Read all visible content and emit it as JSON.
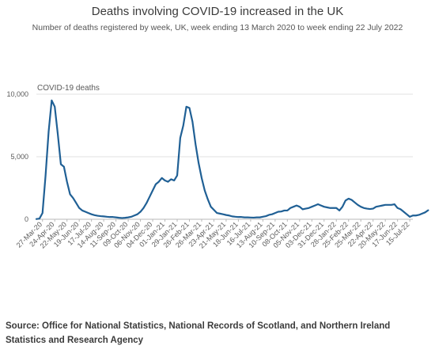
{
  "chart_data": {
    "type": "line",
    "title": "Deaths involving COVID-19 increased in the UK",
    "subtitle": "Number of deaths registered by week, UK, week ending 13 March 2020 to week ending 22 July 2022",
    "ylabel": "COVID-19 deaths",
    "xlabel": "",
    "ylim": [
      0,
      10000
    ],
    "yticks": [
      0,
      5000,
      10000
    ],
    "ytick_labels": [
      "0",
      "5,000",
      "10,000"
    ],
    "grid": "horizontal",
    "color": "#206095",
    "x_tick_labels": [
      "27-Mar-20",
      "24-Apr-20",
      "22-May-20",
      "19-Jun-20",
      "17-Jul-20",
      "14-Aug-20",
      "11-Sep-20",
      "09-Oct-20",
      "06-Nov-20",
      "04-Dec-20",
      "01-Jan-21",
      "29-Jan-21",
      "26-Feb-21",
      "26-Mar-21",
      "23-Apr-21",
      "21-May-21",
      "18-Jun-21",
      "16-Jul-21",
      "13-Aug-21",
      "10-Sep-21",
      "08-Oct-21",
      "05-Nov-21",
      "03-Dec-21",
      "31-Dec-21",
      "28-Jan-22",
      "25-Feb-22",
      "25-Mar-22",
      "22-Apr-22",
      "20-May-22",
      "17-Jun-22",
      "15-Jul-22"
    ],
    "x_tick_weeks": [
      2,
      6,
      10,
      14,
      18,
      22,
      26,
      30,
      34,
      38,
      42,
      46,
      50,
      54,
      58,
      62,
      66,
      70,
      74,
      78,
      82,
      86,
      90,
      94,
      98,
      102,
      106,
      110,
      114,
      118,
      122
    ],
    "week_count": 124,
    "series": [
      {
        "values": [
          20,
          50,
          500,
          3500,
          7000,
          9500,
          9000,
          6800,
          4400,
          4200,
          3000,
          2000,
          1700,
          1300,
          900,
          700,
          600,
          500,
          400,
          330,
          280,
          250,
          230,
          200,
          180,
          180,
          150,
          120,
          100,
          120,
          150,
          200,
          300,
          400,
          600,
          900,
          1300,
          1800,
          2300,
          2800,
          3000,
          3300,
          3100,
          3000,
          3200,
          3100,
          3500,
          6500,
          7500,
          9000,
          8900,
          7800,
          6000,
          4500,
          3300,
          2300,
          1600,
          1000,
          750,
          500,
          450,
          400,
          340,
          300,
          230,
          200,
          180,
          180,
          150,
          150,
          140,
          130,
          150,
          150,
          200,
          250,
          350,
          400,
          500,
          600,
          620,
          700,
          700,
          900,
          1000,
          1100,
          1000,
          800,
          850,
          900,
          1000,
          1100,
          1200,
          1100,
          1000,
          950,
          900,
          900,
          900,
          700,
          1000,
          1500,
          1650,
          1550,
          1350,
          1150,
          1000,
          900,
          850,
          820,
          850,
          1000,
          1050,
          1100,
          1150,
          1150,
          1150,
          1200,
          900,
          800,
          600,
          400,
          200,
          300,
          300,
          350,
          450,
          550,
          720
        ]
      }
    ],
    "source": "Source: Office for National Statistics, National Records of Scotland, and Northern Ireland Statistics and Research Agency"
  }
}
